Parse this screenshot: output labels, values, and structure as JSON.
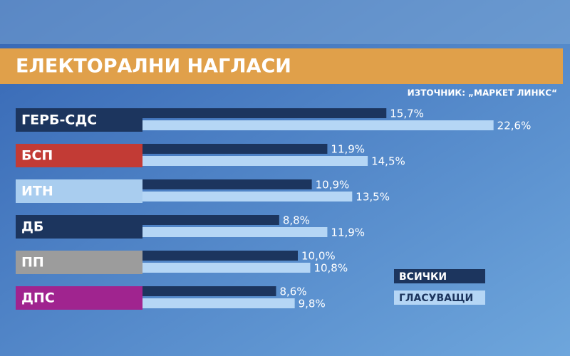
{
  "chart_data": {
    "type": "grouped-hbar",
    "title": "ЕЛЕКТОРАЛНИ НАГЛАСИ",
    "subtitle": "ИЗТОЧНИК: „МАРКЕТ ЛИНКС“",
    "categories": [
      "ГЕРБ-СДС",
      "БСП",
      "ИТН",
      "ДБ",
      "ПП",
      "ДПС"
    ],
    "category_colors": [
      "#1c355e",
      "#c23b35",
      "#a9cdef",
      "#1c355e",
      "#9c9c9c",
      "#a0248f"
    ],
    "series": [
      {
        "name": "ВСИЧКИ",
        "color": "#1c355e",
        "values": [
          15.7,
          11.9,
          10.9,
          8.8,
          10.0,
          8.6
        ],
        "value_labels": [
          "15,7%",
          "11,9%",
          "10,9%",
          "8,8%",
          "10,0%",
          "8,6%"
        ]
      },
      {
        "name": "ГЛАСУВАЩИ",
        "color": "#b5d6f5",
        "values": [
          22.6,
          14.5,
          13.5,
          11.9,
          10.8,
          9.8
        ],
        "value_labels": [
          "22,6%",
          "14,5%",
          "13,5%",
          "11,9%",
          "10,8%",
          "9,8%"
        ]
      }
    ]
  }
}
